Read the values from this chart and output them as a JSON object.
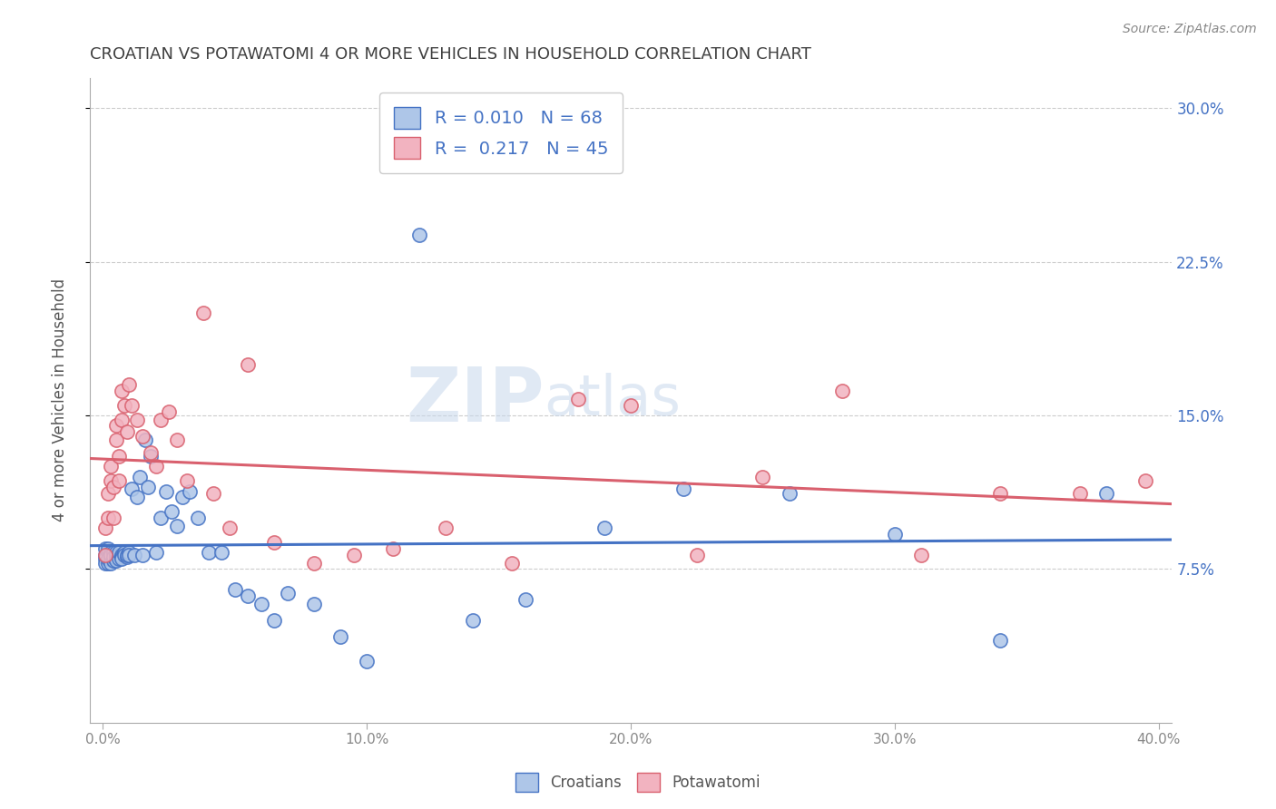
{
  "title": "CROATIAN VS POTAWATOMI 4 OR MORE VEHICLES IN HOUSEHOLD CORRELATION CHART",
  "source": "Source: ZipAtlas.com",
  "xlabel_ticks": [
    "0.0%",
    "10.0%",
    "20.0%",
    "30.0%",
    "40.0%"
  ],
  "xlabel_tick_vals": [
    0.0,
    0.1,
    0.2,
    0.3,
    0.4
  ],
  "ylabel_ticks": [
    "7.5%",
    "15.0%",
    "22.5%",
    "30.0%"
  ],
  "ylabel_tick_vals": [
    0.075,
    0.15,
    0.225,
    0.3
  ],
  "ylabel": "4 or more Vehicles in Household",
  "xlim": [
    -0.005,
    0.405
  ],
  "ylim": [
    0.0,
    0.315
  ],
  "croatians_color": "#aec6e8",
  "potawatomi_color": "#f2b3c0",
  "croatians_line_color": "#4472c4",
  "potawatomi_line_color": "#d9606e",
  "legend_label_croatians": "Croatians",
  "legend_label_potawatomi": "Potawatomi",
  "R_croatians": 0.01,
  "N_croatians": 68,
  "R_potawatomi": 0.217,
  "N_potawatomi": 45,
  "croatians_x": [
    0.001,
    0.001,
    0.001,
    0.001,
    0.002,
    0.002,
    0.002,
    0.002,
    0.003,
    0.003,
    0.003,
    0.003,
    0.003,
    0.004,
    0.004,
    0.004,
    0.004,
    0.005,
    0.005,
    0.005,
    0.005,
    0.006,
    0.006,
    0.006,
    0.007,
    0.007,
    0.007,
    0.008,
    0.008,
    0.009,
    0.009,
    0.01,
    0.01,
    0.011,
    0.012,
    0.013,
    0.014,
    0.015,
    0.016,
    0.017,
    0.018,
    0.02,
    0.022,
    0.024,
    0.026,
    0.028,
    0.03,
    0.033,
    0.036,
    0.04,
    0.045,
    0.05,
    0.055,
    0.06,
    0.065,
    0.07,
    0.08,
    0.09,
    0.1,
    0.12,
    0.14,
    0.16,
    0.19,
    0.22,
    0.26,
    0.3,
    0.34,
    0.38
  ],
  "croatians_y": [
    0.082,
    0.085,
    0.08,
    0.078,
    0.083,
    0.085,
    0.078,
    0.08,
    0.082,
    0.083,
    0.08,
    0.078,
    0.082,
    0.08,
    0.083,
    0.079,
    0.081,
    0.082,
    0.08,
    0.083,
    0.079,
    0.082,
    0.08,
    0.083,
    0.082,
    0.081,
    0.08,
    0.083,
    0.082,
    0.081,
    0.082,
    0.083,
    0.082,
    0.114,
    0.082,
    0.11,
    0.12,
    0.082,
    0.138,
    0.115,
    0.13,
    0.083,
    0.1,
    0.113,
    0.103,
    0.096,
    0.11,
    0.113,
    0.1,
    0.083,
    0.083,
    0.065,
    0.062,
    0.058,
    0.05,
    0.063,
    0.058,
    0.042,
    0.03,
    0.238,
    0.05,
    0.06,
    0.095,
    0.114,
    0.112,
    0.092,
    0.04,
    0.112
  ],
  "potawatomi_x": [
    0.001,
    0.001,
    0.002,
    0.002,
    0.003,
    0.003,
    0.004,
    0.004,
    0.005,
    0.005,
    0.006,
    0.006,
    0.007,
    0.007,
    0.008,
    0.009,
    0.01,
    0.011,
    0.013,
    0.015,
    0.018,
    0.02,
    0.022,
    0.025,
    0.028,
    0.032,
    0.038,
    0.042,
    0.048,
    0.055,
    0.065,
    0.08,
    0.095,
    0.11,
    0.13,
    0.155,
    0.18,
    0.2,
    0.225,
    0.25,
    0.28,
    0.31,
    0.34,
    0.37,
    0.395
  ],
  "potawatomi_y": [
    0.082,
    0.095,
    0.1,
    0.112,
    0.125,
    0.118,
    0.1,
    0.115,
    0.138,
    0.145,
    0.13,
    0.118,
    0.148,
    0.162,
    0.155,
    0.142,
    0.165,
    0.155,
    0.148,
    0.14,
    0.132,
    0.125,
    0.148,
    0.152,
    0.138,
    0.118,
    0.2,
    0.112,
    0.095,
    0.175,
    0.088,
    0.078,
    0.082,
    0.085,
    0.095,
    0.078,
    0.158,
    0.155,
    0.082,
    0.12,
    0.162,
    0.082,
    0.112,
    0.112,
    0.118
  ],
  "watermark_zip": "ZIP",
  "watermark_atlas": "atlas",
  "background_color": "#ffffff",
  "grid_color": "#cccccc",
  "title_color": "#404040",
  "axis_label_color": "#555555",
  "tick_label_color_right": "#4472c4",
  "tick_label_color_bottom": "#888888"
}
